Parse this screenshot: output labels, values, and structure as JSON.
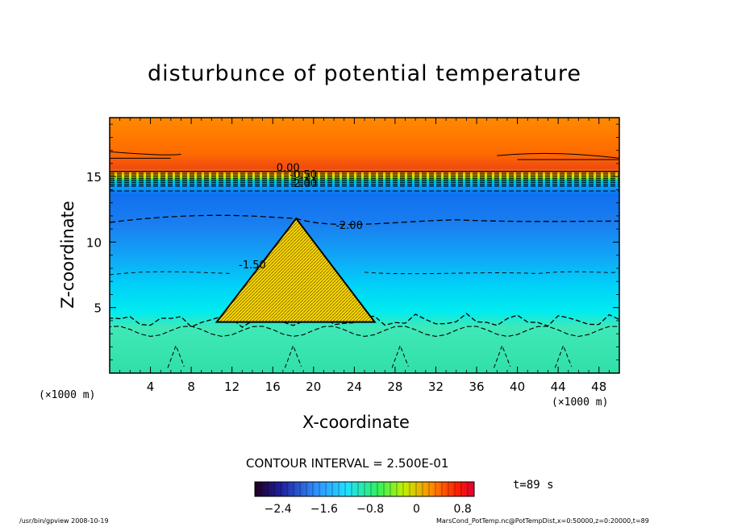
{
  "chart_data": {
    "type": "heatmap",
    "title": "disturbunce of potential temperature",
    "xlabel": "X-coordinate",
    "ylabel": "Z-coordinate",
    "x_unit_left": "(×1000 m)",
    "x_unit_right": "(×1000 m)",
    "xlim": [
      0,
      50
    ],
    "ylim": [
      0,
      19.5
    ],
    "xticks": [
      4,
      8,
      12,
      16,
      20,
      24,
      28,
      32,
      36,
      40,
      44,
      48
    ],
    "yticks": [
      5,
      10,
      15
    ],
    "contour_labels": [
      {
        "text": "0.00",
        "x": 17.5,
        "y": 15.4
      },
      {
        "text": "-0.50",
        "x": 19.0,
        "y": 14.9
      },
      {
        "text": "-2.00",
        "x": 19.0,
        "y": 14.2
      },
      {
        "text": "-2.00",
        "x": 23.5,
        "y": 11.0
      },
      {
        "text": "-1.50",
        "x": 14.0,
        "y": 8.0
      }
    ],
    "mountain": {
      "base_left": 10.5,
      "base_right": 26.0,
      "peak_x": 18.3,
      "peak_z": 11.8,
      "base_z": 3.9
    },
    "contour_interval": "CONTOUR INTERVAL = 2.500E-01",
    "colorbar": {
      "ticks": [
        "−2.4",
        "−1.6",
        "−0.8",
        "0",
        "0.8"
      ],
      "range": [
        -2.8,
        1.0
      ]
    },
    "time": "t=89 s",
    "grid": false
  },
  "footer": {
    "left": "/usr/bin/gpview  2008-10-19",
    "right": "MarsCond_PotTemp.nc@PotTempDist,x=0:50000,z=0:20000,t=89"
  }
}
